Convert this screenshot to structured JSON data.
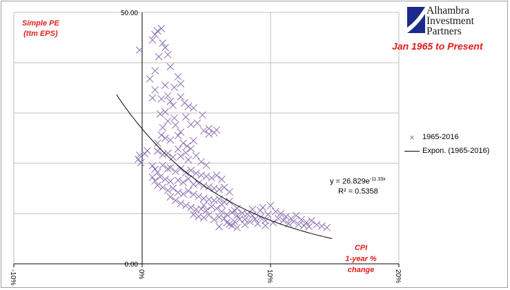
{
  "logo": {
    "line1": "Alhambra",
    "line2": "Investment",
    "line3": "Partners",
    "colors": {
      "blue": "#1a2b8c",
      "white": "#ffffff"
    }
  },
  "subtitle": "Jan 1965 to Present",
  "legend": {
    "series_label": "1965-2016",
    "trend_label": "Expon. (1965-2016)"
  },
  "equation": {
    "prefix": "y = 26.829e",
    "exponent": "-11.33x",
    "r2": "R² = 0.5358"
  },
  "colors": {
    "marker": "#8b6fb3",
    "title": "#e31a1a",
    "grid": "#bfbfbf"
  },
  "chart_data": {
    "type": "scatter",
    "ylabel_lines": [
      "Simple PE",
      "(ttm EPS)"
    ],
    "xlabel_lines": [
      "CPI",
      "1-year % change"
    ],
    "xlim": [
      -0.1,
      0.2
    ],
    "ylim": [
      0,
      50
    ],
    "y_ticks": [
      {
        "value": 0,
        "label": "0.00"
      },
      {
        "value": 10,
        "label": ""
      },
      {
        "value": 20,
        "label": ""
      },
      {
        "value": 30,
        "label": ""
      },
      {
        "value": 40,
        "label": ""
      },
      {
        "value": 50,
        "label": "50.00"
      }
    ],
    "x_ticks": [
      {
        "value": -0.1,
        "label": "-10%"
      },
      {
        "value": 0.0,
        "label": "0%"
      },
      {
        "value": 0.1,
        "label": "10%"
      },
      {
        "value": 0.2,
        "label": "20%"
      }
    ],
    "grid": true,
    "legend_position": "right",
    "series": [
      {
        "name": "1965-2016",
        "marker": "x",
        "points": [
          [
            -0.002,
            42.5
          ],
          [
            0.012,
            46.3
          ],
          [
            0.015,
            46.8
          ],
          [
            0.008,
            44.5
          ],
          [
            0.01,
            45.6
          ],
          [
            0.016,
            43.9
          ],
          [
            0.018,
            43.0
          ],
          [
            0.02,
            41.6
          ],
          [
            0.013,
            41.2
          ],
          [
            0.006,
            36.8
          ],
          [
            0.01,
            38.4
          ],
          [
            0.022,
            39.2
          ],
          [
            0.025,
            35.1
          ],
          [
            0.028,
            37.2
          ],
          [
            0.03,
            35.8
          ],
          [
            0.018,
            35.5
          ],
          [
            0.008,
            33.0
          ],
          [
            0.01,
            34.6
          ],
          [
            0.015,
            32.8
          ],
          [
            0.02,
            33.4
          ],
          [
            0.024,
            31.5
          ],
          [
            0.018,
            30.2
          ],
          [
            0.022,
            32.3
          ],
          [
            0.03,
            33.2
          ],
          [
            0.033,
            32.0
          ],
          [
            0.036,
            31.3
          ],
          [
            0.04,
            31.0
          ],
          [
            0.025,
            29.0
          ],
          [
            0.014,
            29.8
          ],
          [
            0.034,
            29.2
          ],
          [
            0.047,
            29.6
          ],
          [
            0.038,
            27.7
          ],
          [
            0.043,
            28.0
          ],
          [
            0.016,
            27.1
          ],
          [
            0.02,
            28.4
          ],
          [
            0.026,
            27.6
          ],
          [
            0.03,
            26.2
          ],
          [
            0.015,
            25.6
          ],
          [
            0.018,
            25.0
          ],
          [
            0.022,
            24.6
          ],
          [
            0.028,
            25.5
          ],
          [
            0.032,
            24.0
          ],
          [
            0.035,
            23.4
          ],
          [
            0.012,
            24.0
          ],
          [
            0.048,
            26.5
          ],
          [
            0.052,
            26.9
          ],
          [
            0.056,
            26.1
          ],
          [
            0.058,
            26.6
          ],
          [
            0.052,
            25.8
          ],
          [
            0.028,
            22.8
          ],
          [
            0.034,
            22.1
          ],
          [
            0.038,
            22.9
          ],
          [
            0.04,
            24.5
          ],
          [
            -0.002,
            21.6
          ],
          [
            -0.003,
            20.8
          ],
          [
            -0.001,
            20.1
          ],
          [
            0.002,
            21.9
          ],
          [
            0.004,
            22.5
          ],
          [
            0.012,
            22.4
          ],
          [
            0.016,
            21.7
          ],
          [
            0.02,
            22.0
          ],
          [
            0.024,
            21.2
          ],
          [
            0.03,
            21.4
          ],
          [
            0.036,
            20.7
          ],
          [
            0.042,
            21.5
          ],
          [
            0.046,
            20.3
          ],
          [
            0.05,
            19.6
          ],
          [
            0.008,
            19.5
          ],
          [
            0.01,
            18.8
          ],
          [
            0.012,
            18.2
          ],
          [
            0.016,
            19.6
          ],
          [
            0.02,
            18.9
          ],
          [
            0.022,
            19.1
          ],
          [
            0.026,
            18.4
          ],
          [
            0.03,
            18.9
          ],
          [
            0.034,
            18.1
          ],
          [
            0.038,
            18.6
          ],
          [
            0.042,
            18.0
          ],
          [
            0.046,
            17.6
          ],
          [
            0.05,
            17.4
          ],
          [
            0.054,
            17.1
          ],
          [
            0.058,
            17.6
          ],
          [
            0.062,
            16.8
          ],
          [
            0.008,
            17.2
          ],
          [
            0.01,
            16.5
          ],
          [
            0.014,
            17.3
          ],
          [
            0.018,
            16.8
          ],
          [
            0.022,
            16.4
          ],
          [
            0.028,
            16.6
          ],
          [
            0.032,
            16.2
          ],
          [
            0.036,
            16.9
          ],
          [
            0.04,
            15.8
          ],
          [
            0.044,
            16.0
          ],
          [
            0.048,
            15.5
          ],
          [
            0.052,
            15.3
          ],
          [
            0.056,
            15.0
          ],
          [
            0.06,
            14.8
          ],
          [
            0.064,
            15.2
          ],
          [
            0.068,
            14.3
          ],
          [
            0.012,
            15.6
          ],
          [
            0.016,
            15.2
          ],
          [
            0.02,
            14.6
          ],
          [
            0.024,
            15.0
          ],
          [
            0.028,
            14.2
          ],
          [
            0.032,
            13.9
          ],
          [
            0.036,
            14.5
          ],
          [
            0.04,
            13.8
          ],
          [
            0.044,
            13.4
          ],
          [
            0.048,
            13.0
          ],
          [
            0.052,
            12.8
          ],
          [
            0.056,
            12.6
          ],
          [
            0.06,
            12.9
          ],
          [
            0.064,
            12.3
          ],
          [
            0.068,
            12.4
          ],
          [
            0.022,
            13.3
          ],
          [
            0.026,
            12.6
          ],
          [
            0.03,
            12.0
          ],
          [
            0.034,
            11.6
          ],
          [
            0.038,
            11.2
          ],
          [
            0.042,
            10.8
          ],
          [
            0.046,
            10.9
          ],
          [
            0.05,
            10.6
          ],
          [
            0.054,
            11.4
          ],
          [
            0.058,
            11.0
          ],
          [
            0.062,
            10.4
          ],
          [
            0.066,
            9.8
          ],
          [
            0.07,
            10.2
          ],
          [
            0.04,
            9.8
          ],
          [
            0.044,
            9.4
          ],
          [
            0.048,
            9.2
          ],
          [
            0.052,
            9.7
          ],
          [
            0.056,
            8.8
          ],
          [
            0.06,
            9.3
          ],
          [
            0.064,
            9.0
          ],
          [
            0.066,
            8.2
          ],
          [
            0.068,
            7.9
          ],
          [
            0.072,
            8.4
          ],
          [
            0.07,
            7.6
          ],
          [
            0.072,
            10.6
          ],
          [
            0.074,
            9.6
          ],
          [
            0.076,
            8.9
          ],
          [
            0.078,
            10.1
          ],
          [
            0.08,
            8.8
          ],
          [
            0.082,
            9.9
          ],
          [
            0.084,
            8.4
          ],
          [
            0.086,
            9.6
          ],
          [
            0.088,
            8.9
          ],
          [
            0.09,
            8.0
          ],
          [
            0.092,
            9.2
          ],
          [
            0.094,
            11.2
          ],
          [
            0.096,
            8.6
          ],
          [
            0.098,
            9.8
          ],
          [
            0.1,
            11.6
          ],
          [
            0.102,
            8.2
          ],
          [
            0.104,
            10.4
          ],
          [
            0.106,
            9.0
          ],
          [
            0.108,
            10.0
          ],
          [
            0.11,
            8.6
          ],
          [
            0.112,
            9.4
          ],
          [
            0.114,
            8.0
          ],
          [
            0.116,
            9.0
          ],
          [
            0.118,
            8.4
          ],
          [
            0.12,
            9.6
          ],
          [
            0.122,
            7.8
          ],
          [
            0.124,
            8.8
          ],
          [
            0.126,
            7.6
          ],
          [
            0.128,
            8.2
          ],
          [
            0.13,
            7.4
          ],
          [
            0.132,
            8.6
          ],
          [
            0.136,
            7.8
          ],
          [
            0.14,
            7.5
          ],
          [
            0.144,
            7.2
          ],
          [
            0.048,
            11.6
          ],
          [
            0.062,
            11.8
          ],
          [
            0.074,
            11.0
          ],
          [
            0.086,
            10.8
          ],
          [
            0.092,
            10.6
          ],
          [
            0.08,
            7.8
          ],
          [
            0.096,
            7.6
          ],
          [
            0.06,
            7.4
          ],
          [
            0.074,
            7.2
          ]
        ]
      }
    ],
    "trendline": {
      "name": "Expon. (1965-2016)",
      "a": 26.829,
      "b": -11.33,
      "x_range": [
        -0.02,
        0.148
      ]
    }
  }
}
